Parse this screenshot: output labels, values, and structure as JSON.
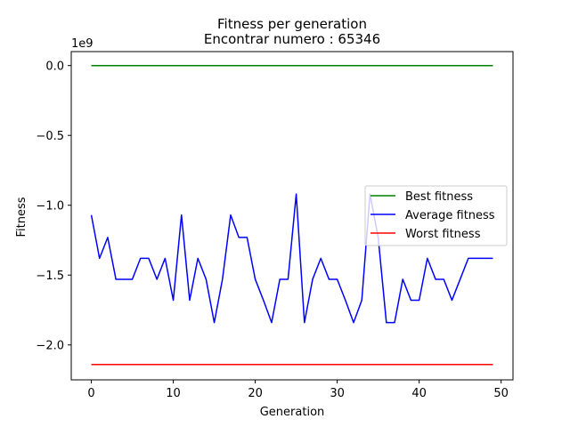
{
  "chart_data": {
    "type": "line",
    "title_line1": "Fitness per generation",
    "title_line2": "Encontrar numero : 65346",
    "xlabel": "Generation",
    "ylabel": "Fitness",
    "y_offset_label": "1e9",
    "y_scale": 1000000000,
    "xlim": [
      -2.45,
      51.45
    ],
    "ylim": [
      -2250000000.0,
      100000000.0
    ],
    "x_ticks": [
      0,
      10,
      20,
      30,
      40,
      50
    ],
    "x_tick_labels": [
      "0",
      "10",
      "20",
      "30",
      "40",
      "50"
    ],
    "y_ticks": [
      0,
      -500000000,
      -1000000000,
      -1500000000,
      -2000000000
    ],
    "y_tick_labels": [
      "0.0",
      "−0.5",
      "−1.0",
      "−1.5",
      "−2.0"
    ],
    "legend_position": "center-right",
    "x": [
      0,
      1,
      2,
      3,
      4,
      5,
      6,
      7,
      8,
      9,
      10,
      11,
      12,
      13,
      14,
      15,
      16,
      17,
      18,
      19,
      20,
      21,
      22,
      23,
      24,
      25,
      26,
      27,
      28,
      29,
      30,
      31,
      32,
      33,
      34,
      35,
      36,
      37,
      38,
      39,
      40,
      41,
      42,
      43,
      44,
      45,
      46,
      47,
      48,
      49
    ],
    "series": [
      {
        "name": "Best fitness",
        "color": "#008000",
        "values": [
          0,
          0,
          0,
          0,
          0,
          0,
          0,
          0,
          0,
          0,
          0,
          0,
          0,
          0,
          0,
          0,
          0,
          0,
          0,
          0,
          0,
          0,
          0,
          0,
          0,
          0,
          0,
          0,
          0,
          0,
          0,
          0,
          0,
          0,
          0,
          0,
          0,
          0,
          0,
          0,
          0,
          0,
          0,
          0,
          0,
          0,
          0,
          0,
          0,
          0
        ]
      },
      {
        "name": "Average fitness",
        "color": "#0000ff",
        "values": [
          -1070000000,
          -1380000000,
          -1230000000,
          -1530000000,
          -1530000000,
          -1530000000,
          -1380000000,
          -1380000000,
          -1530000000,
          -1380000000,
          -1680000000,
          -1070000000,
          -1680000000,
          -1380000000,
          -1530000000,
          -1840000000,
          -1530000000,
          -1070000000,
          -1230000000,
          -1230000000,
          -1530000000,
          -1680000000,
          -1840000000,
          -1530000000,
          -1530000000,
          -920000000,
          -1840000000,
          -1530000000,
          -1380000000,
          -1530000000,
          -1530000000,
          -1680000000,
          -1840000000,
          -1680000000,
          -920000000,
          -1230000000,
          -1840000000,
          -1840000000,
          -1530000000,
          -1680000000,
          -1680000000,
          -1380000000,
          -1530000000,
          -1530000000,
          -1680000000,
          -1530000000,
          -1380000000,
          -1380000000,
          -1380000000,
          -1380000000
        ]
      },
      {
        "name": "Worst fitness",
        "color": "#ff0000",
        "values": [
          -2140000000,
          -2140000000,
          -2140000000,
          -2140000000,
          -2140000000,
          -2140000000,
          -2140000000,
          -2140000000,
          -2140000000,
          -2140000000,
          -2140000000,
          -2140000000,
          -2140000000,
          -2140000000,
          -2140000000,
          -2140000000,
          -2140000000,
          -2140000000,
          -2140000000,
          -2140000000,
          -2140000000,
          -2140000000,
          -2140000000,
          -2140000000,
          -2140000000,
          -2140000000,
          -2140000000,
          -2140000000,
          -2140000000,
          -2140000000,
          -2140000000,
          -2140000000,
          -2140000000,
          -2140000000,
          -2140000000,
          -2140000000,
          -2140000000,
          -2140000000,
          -2140000000,
          -2140000000,
          -2140000000,
          -2140000000,
          -2140000000,
          -2140000000,
          -2140000000,
          -2140000000,
          -2140000000,
          -2140000000,
          -2140000000,
          -2140000000
        ]
      }
    ]
  }
}
